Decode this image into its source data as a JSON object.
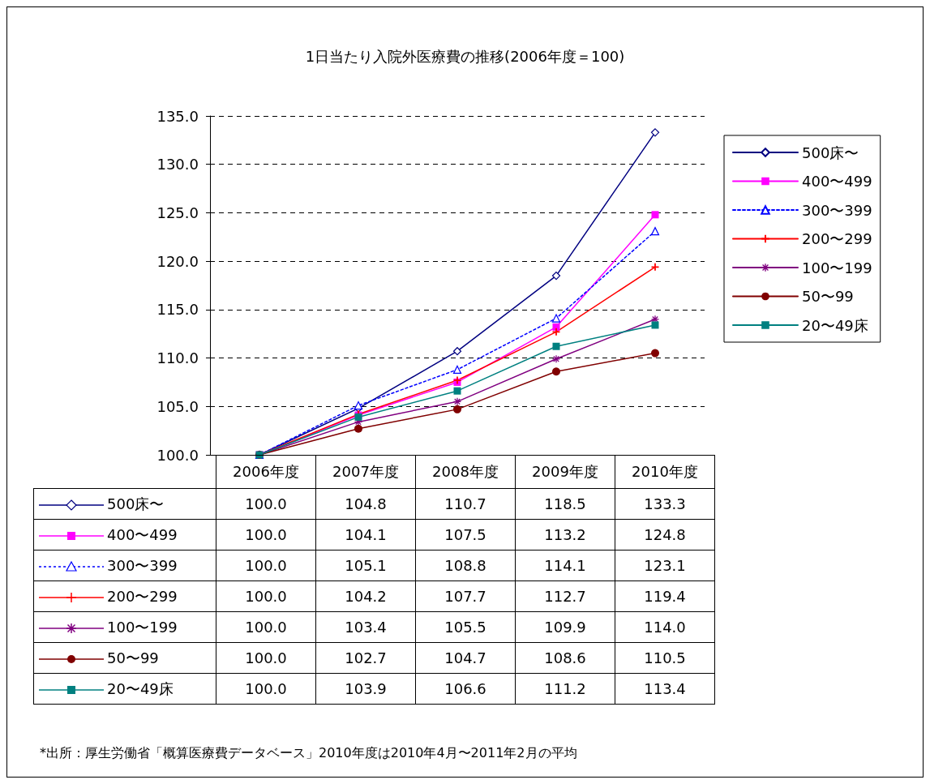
{
  "chart_data": {
    "type": "line",
    "title": "1日当たり入院外医療費の推移(2006年度＝100)",
    "categories": [
      "2006年度",
      "2007年度",
      "2008年度",
      "2009年度",
      "2010年度"
    ],
    "series": [
      {
        "name": "500床〜",
        "color": "#000080",
        "marker": "diamond",
        "line_style": "solid",
        "values": [
          100.0,
          104.8,
          110.7,
          118.5,
          133.3
        ],
        "value_labels": [
          "100.0",
          "104.8",
          "110.7",
          "118.5",
          "133.3"
        ]
      },
      {
        "name": "400〜499",
        "color": "#ff00ff",
        "marker": "square",
        "line_style": "solid",
        "values": [
          100.0,
          104.1,
          107.5,
          113.2,
          124.8
        ],
        "value_labels": [
          "100.0",
          "104.1",
          "107.5",
          "113.2",
          "124.8"
        ]
      },
      {
        "name": "300〜399",
        "color": "#0000ff",
        "marker": "triangle",
        "line_style": "dotted",
        "values": [
          100.0,
          105.1,
          108.8,
          114.1,
          123.1
        ],
        "value_labels": [
          "100.0",
          "105.1",
          "108.8",
          "114.1",
          "123.1"
        ]
      },
      {
        "name": "200〜299",
        "color": "#ff0000",
        "marker": "cross",
        "line_style": "solid",
        "values": [
          100.0,
          104.2,
          107.7,
          112.7,
          119.4
        ],
        "value_labels": [
          "100.0",
          "104.2",
          "107.7",
          "112.7",
          "119.4"
        ]
      },
      {
        "name": "100〜199",
        "color": "#800080",
        "marker": "star",
        "line_style": "solid",
        "values": [
          100.0,
          103.4,
          105.5,
          109.9,
          114.0
        ],
        "value_labels": [
          "100.0",
          "103.4",
          "105.5",
          "109.9",
          "114.0"
        ]
      },
      {
        "name": "50〜99",
        "color": "#800000",
        "marker": "circle",
        "line_style": "solid",
        "values": [
          100.0,
          102.7,
          104.7,
          108.6,
          110.5
        ],
        "value_labels": [
          "100.0",
          "102.7",
          "104.7",
          "108.6",
          "110.5"
        ]
      },
      {
        "name": "20〜49床",
        "color": "#008080",
        "marker": "square",
        "line_style": "solid",
        "values": [
          100.0,
          103.9,
          106.6,
          111.2,
          113.4
        ],
        "value_labels": [
          "100.0",
          "103.9",
          "106.6",
          "111.2",
          "113.4"
        ]
      }
    ],
    "ylim": [
      100,
      135
    ],
    "yticks": [
      {
        "value": 100,
        "label": "100.0"
      },
      {
        "value": 105,
        "label": "105.0"
      },
      {
        "value": 110,
        "label": "110.0"
      },
      {
        "value": 115,
        "label": "115.0"
      },
      {
        "value": 120,
        "label": "120.0"
      },
      {
        "value": 125,
        "label": "125.0"
      },
      {
        "value": 130,
        "label": "130.0"
      },
      {
        "value": 135,
        "label": "135.0"
      }
    ],
    "grid": "y",
    "legend": "right",
    "annotations": [
      "*出所：厚生労働省「概算医療費データベース」2010年度は2010年4月〜2011年2月の平均"
    ]
  }
}
